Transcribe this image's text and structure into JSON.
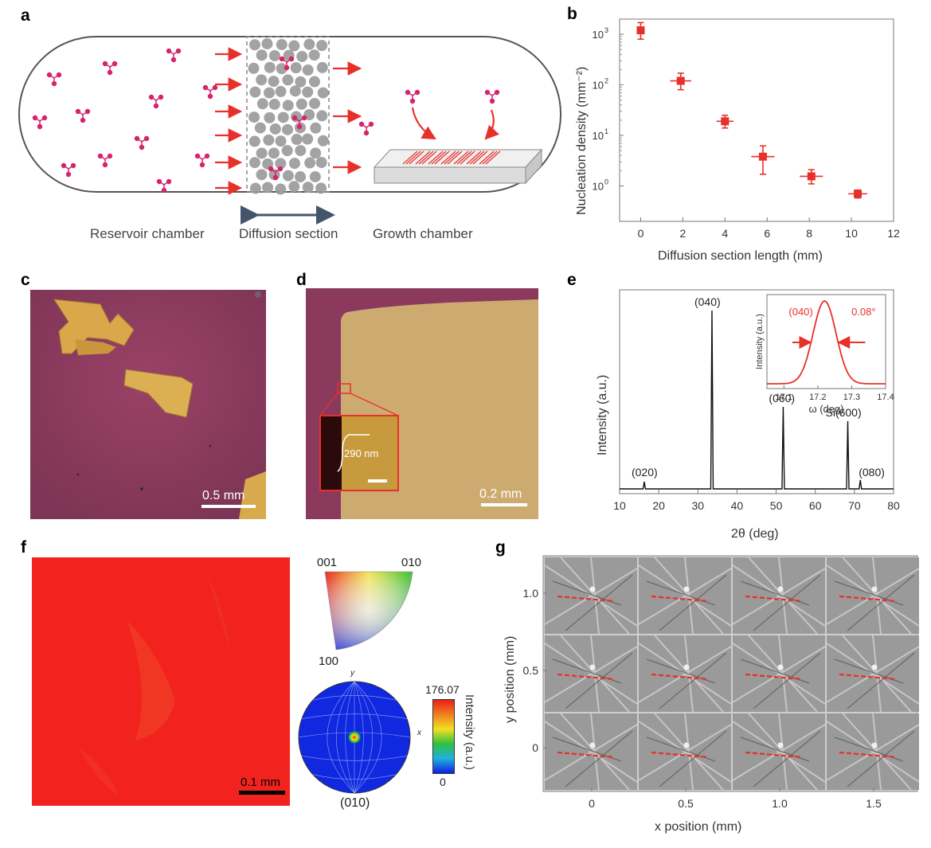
{
  "panel_labels": {
    "a": "a",
    "b": "b",
    "c": "c",
    "d": "d",
    "e": "e",
    "f": "f",
    "g": "g"
  },
  "panel_a": {
    "captions": {
      "reservoir": "Reservoir chamber",
      "diffusion": "Diffusion section",
      "growth": "Growth chamber"
    },
    "colors": {
      "molecule": "#d6236e",
      "arrow": "#e8302a",
      "disk": "#a3a3a3",
      "chamber": "#555555"
    }
  },
  "panel_b": {
    "chart_data": {
      "type": "scatter",
      "xlabel": "Diffusion section length (mm)",
      "ylabel": "Nucleation density (mm⁻²)",
      "xlim": [
        -1,
        12
      ],
      "ylim_log10": [
        -0.7,
        3.3
      ],
      "log_scale_y": true,
      "x_ticks": [
        "0",
        "2",
        "4",
        "6",
        "8",
        "10",
        "12"
      ],
      "y_ticks": [
        {
          "base": "10",
          "exp": "0"
        },
        {
          "base": "10",
          "exp": "1"
        },
        {
          "base": "10",
          "exp": "2"
        },
        {
          "base": "10",
          "exp": "3"
        }
      ],
      "points": [
        {
          "x": 0.0,
          "y": 1200,
          "ylo": 800,
          "yhi": 1700,
          "xerr": 0.1
        },
        {
          "x": 1.9,
          "y": 120,
          "ylo": 80,
          "yhi": 170,
          "xerr": 0.5
        },
        {
          "x": 4.0,
          "y": 19,
          "ylo": 14,
          "yhi": 25,
          "xerr": 0.4
        },
        {
          "x": 5.8,
          "y": 3.8,
          "ylo": 1.7,
          "yhi": 6.2,
          "xerr": 0.55
        },
        {
          "x": 8.1,
          "y": 1.55,
          "ylo": 1.1,
          "yhi": 2.1,
          "xerr": 0.55
        },
        {
          "x": 10.3,
          "y": 0.7,
          "ylo": 0.58,
          "yhi": 0.83,
          "xerr": 0.45
        }
      ],
      "color": "#e8302a"
    }
  },
  "panel_c": {
    "scale_label": "0.5 mm"
  },
  "panel_d": {
    "scale_label": "0.2 mm",
    "inset_label": "290 nm"
  },
  "panel_e": {
    "chart_data": {
      "type": "line",
      "xlabel": "2θ (deg)",
      "ylabel": "Intensity (a.u.)",
      "xlim": [
        10,
        80
      ],
      "x_ticks": [
        "10",
        "20",
        "30",
        "40",
        "50",
        "60",
        "70",
        "80"
      ],
      "peaks": [
        {
          "label": "(020)",
          "x": 16.3,
          "height": 0.04
        },
        {
          "label": "(040)",
          "x": 33.6,
          "height": 1.0
        },
        {
          "label": "(060)",
          "x": 51.8,
          "height": 0.46
        },
        {
          "label": "Si(600)",
          "x": 68.3,
          "height": 0.38
        },
        {
          "label": "(080)",
          "x": 71.5,
          "height": 0.05
        }
      ],
      "inset": {
        "type": "line",
        "xlabel": "ω (deg)",
        "ylabel": "Intensity (a.u.)",
        "xlim": [
          17.05,
          17.4
        ],
        "x_ticks": [
          "17.1",
          "17.2",
          "17.3",
          "17.4"
        ],
        "peak_label": "(040)",
        "fwhm_label": "0.08°",
        "center": 17.22,
        "fwhm": 0.08,
        "color": "#e8302a"
      }
    }
  },
  "panel_f": {
    "scale_label": "0.1 mm",
    "triangle_labels": {
      "top_left": "001",
      "top_right": "010",
      "bottom": "100"
    },
    "pole_labels": {
      "y": "y",
      "x": "x",
      "bottom": "(010)"
    },
    "colorbar": {
      "max": "176.07",
      "min": "0",
      "label": "Intensity (a.u.)"
    },
    "map_color": "#f2231f"
  },
  "panel_g": {
    "chart_data": {
      "type": "table",
      "xlabel": "x position (mm)",
      "ylabel": "y position (mm)",
      "x_ticks": [
        "0",
        "0.5",
        "1.0",
        "1.5"
      ],
      "y_ticks": [
        "1.0",
        "0.5",
        "0"
      ],
      "grid_rows": 3,
      "grid_cols": 4
    }
  }
}
